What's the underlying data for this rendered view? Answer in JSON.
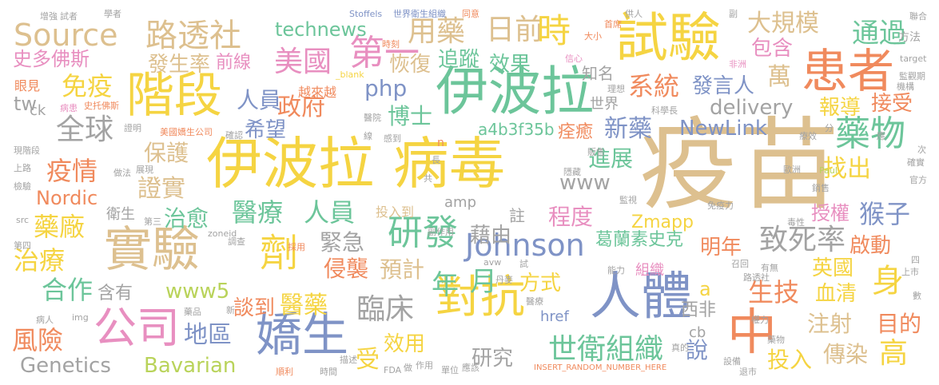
{
  "words": {
    "yimiao": "疫苗",
    "yibola_bingdu_a": "伊波拉",
    "yibola_bingdu_b": "病毒",
    "yibola": "伊波拉",
    "shiyan": "試驗",
    "shiyan2": "實驗",
    "jieduan": "階段",
    "huanzhe": "患者",
    "renti": "人體",
    "duikang": "對抗",
    "jiaosheng": "嬌生",
    "gongsi": "公司",
    "zhong": "中",
    "yaowu": "藥物",
    "ji": "劑",
    "yanfa": "研發",
    "johnson": "Johnson",
    "source": "Source",
    "lutoushe": "路透社",
    "diyi": "第一",
    "meiguo": "美國",
    "yongyao": "用藥",
    "rijian": "日前",
    "shi": "時",
    "tongguo": "通過",
    "daguimo": "大規模",
    "xitong": "系統",
    "xinyao": "新藥",
    "quanqiu": "全球",
    "mianyi": "免疫",
    "yiqing": "疫情",
    "yiliao": "醫療",
    "renyuan": "人員",
    "zhishilv": "致死率",
    "houzi": "猴子",
    "linchuang": "臨床",
    "shiweizuzhi": "世衛組織",
    "yaochang": "藥廠",
    "zhiliao": "治療",
    "hezuo": "合作",
    "fengxian": "風險",
    "genetics": "Genetics",
    "bavarian": "Bavarian",
    "nordic": "Nordic",
    "newlink": "NewLink",
    "delivery": "delivery",
    "technews": "technews",
    "shiduofosi": "史多佛斯",
    "fashenglv": "發生率",
    "qianxian": "前線",
    "zhengfu": "政府",
    "renyuan2": "人員",
    "xiwang": "希望",
    "boshi": "博士",
    "php": "php",
    "zhuizong": "追蹤",
    "huifu": "恢復",
    "xiaoguo": "效果",
    "zhiming": "知名",
    "fayanren": "發言人",
    "wan": "萬",
    "baogao": "報導",
    "jieshou": "接受",
    "baohu": "保護",
    "zhengshi": "證實",
    "zhiyu": "治愈",
    "jinji": "緊急",
    "qinxi": "侵襲",
    "yuji": "預計",
    "nian": "年",
    "yue": "月",
    "fangshi": "方式",
    "jieyou": "藉由",
    "chengdu": "程度",
    "zmapp": "Zmapp",
    "mingnian": "明年",
    "qidong": "啟動",
    "shouquan": "授權",
    "yingguo": "英國",
    "shen": "身",
    "shengji": "生技",
    "xueqing": "血清",
    "zhushe": "注射",
    "mude": "目的",
    "chuanran": "傳染",
    "gao": "高",
    "touru": "投入",
    "shuo": "說",
    "gelansu": "葛蘭素史克",
    "tandao": "談到",
    "yiyao": "醫藥",
    "diqu": "地區",
    "xiaoyong": "效用",
    "yanjiu": "研究",
    "shou": "受",
    "hanyou": "含有",
    "www5": "www5",
    "www": "www",
    "jinzhan": "進展",
    "zhaochu": "找出",
    "cuiyu": "痊癒",
    "a4b": "a4b3f35b",
    "baohan": "包含",
    "tw": "tw",
    "xifei": "西非",
    "zhu": "註",
    "a": "a",
    "cb": "cb",
    "yanjian": "眼見",
    "ck": "ck",
    "weisheng": "衛生",
    "amp": "amp",
    "touru2": "投入到",
    "href": "href",
    "yuelaiyue": "越來越",
    "shijie": "世界",
    "zhuzhi": "組織",
    "insert": "INSERT_RANDOM_NUMBER_HERE",
    "paul": "Paul",
    "zoneid": "zoneid",
    "blank": "_blank",
    "stoffels": "Stoffels",
    "shiweishengzuzhi": "世界衛生組織",
    "tongyi": "同意",
    "shouce": "首席",
    "gongren": "供人",
    "lianhe": "聯合",
    "fangfa": "方法",
    "target": "target",
    "jianguanqi": "監觀期",
    "jigou": "機構",
    "lixiang": "理想",
    "kexuezhang": "科學長",
    "feizhou": "非洲",
    "xinxin": "信心",
    "shiqi": "時刻",
    "daxiao": "大小",
    "zengqiang": "增強",
    "shizhe": "試者",
    "xuezhe": "學者",
    "fu": "副",
    "bingren": "病患",
    "shiduofosi2": "史托佛斯",
    "yiyuan": "醫院",
    "zhengming": "證明",
    "meiguojiaosheng": "美國嬌生公司",
    "quezhen": "確認",
    "xian": "線",
    "gandao": "感到",
    "xianjieduan": "現階段",
    "shanglu": "上路",
    "zuofa": "做法",
    "zhanxian": "展現",
    "jiance": "檢驗",
    "disan": "第三",
    "diaocha": "調查",
    "caiyong": "採用",
    "disi": "第四",
    "src": "src",
    "img": "img",
    "binren": "病人",
    "yaopin": "藥品",
    "xin": "新",
    "miaoshu": "描述",
    "shunli": "順利",
    "shijian": "時間",
    "fda": "FDA",
    "zuo": "做",
    "zuoyong": "作用",
    "danwei": "單位",
    "yinggai": "應該",
    "fuzuoyong": "副作用",
    "avw": "avw",
    "shi2": "試",
    "danmai": "丹麥",
    "yiliao2": "醫療",
    "nengli": "能力",
    "jianshi": "監視",
    "mianyili": "免疫力",
    "zhaohui": "召回",
    "youwu": "有無",
    "lutoushe2": "路透社",
    "quanli": "權力",
    "shede": "真的",
    "tuishi": "退市",
    "sheshi": "設備",
    "yaowu2": "藥物",
    "dushe": "毒性",
    "shangshi": "上市",
    "si": "四",
    "shu": "數",
    "guanfang": "官方",
    "quenshi": "確實",
    "ci": "次",
    "xiaoshou": "銷售",
    "ouzhou": "歐洲",
    "liaoxiao": "療效",
    "fen": "分",
    "ying": "應",
    "gong": "共",
    "zhang": "長",
    "fanshou": "販售",
    "yingyou": "隱藏",
    "n": "n"
  },
  "palette": {
    "yellow": "#f5d442",
    "tan": "#ddc08f",
    "blue": "#7f93c6",
    "orange": "#f08a5d",
    "green": "#6cc59a",
    "pink": "#e88fc0",
    "gray": "#a3a3a3",
    "lime": "#b9d35a"
  }
}
